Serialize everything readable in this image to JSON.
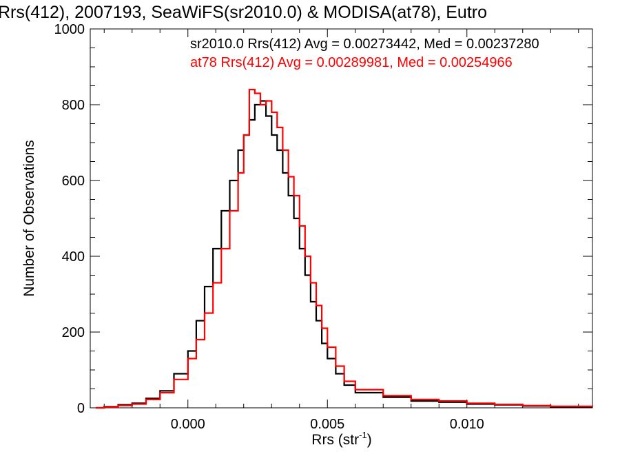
{
  "chart_data": {
    "type": "line",
    "title": "Rrs(412), 2007193, SeaWiFS(sr2010.0) & MODISA(at78), Eutro",
    "xlabel_main": "Rrs (str",
    "xlabel_sup": "-1",
    "xlabel_end": ")",
    "ylabel": "Number of Observations",
    "xlim": [
      -0.0035,
      0.0145
    ],
    "ylim": [
      0,
      1000
    ],
    "x_ticks": [
      0.0,
      0.005,
      0.01
    ],
    "x_tick_labels": [
      "0.000",
      "0.005",
      "0.010"
    ],
    "y_ticks": [
      0,
      200,
      400,
      600,
      800,
      1000
    ],
    "y_tick_labels": [
      "0",
      "200",
      "400",
      "600",
      "800",
      "1000"
    ],
    "series": [
      {
        "color": "#000000",
        "stat_label": "sr2010.0 Rrs(412) Avg = 0.00273442, Med = 0.00237280",
        "points": [
          [
            -0.0033,
            0
          ],
          [
            -0.003,
            3
          ],
          [
            -0.0025,
            8
          ],
          [
            -0.002,
            12
          ],
          [
            -0.0015,
            25
          ],
          [
            -0.001,
            45
          ],
          [
            -0.0005,
            90
          ],
          [
            0.0,
            150
          ],
          [
            0.0003,
            230
          ],
          [
            0.0006,
            320
          ],
          [
            0.0009,
            420
          ],
          [
            0.0012,
            520
          ],
          [
            0.0015,
            600
          ],
          [
            0.0018,
            680
          ],
          [
            0.002,
            720
          ],
          [
            0.0022,
            760
          ],
          [
            0.0024,
            800
          ],
          [
            0.0026,
            810
          ],
          [
            0.0028,
            770
          ],
          [
            0.003,
            720
          ],
          [
            0.0032,
            680
          ],
          [
            0.0034,
            620
          ],
          [
            0.0036,
            560
          ],
          [
            0.0038,
            500
          ],
          [
            0.004,
            420
          ],
          [
            0.0042,
            350
          ],
          [
            0.0044,
            280
          ],
          [
            0.0046,
            230
          ],
          [
            0.0048,
            170
          ],
          [
            0.005,
            130
          ],
          [
            0.0053,
            90
          ],
          [
            0.0056,
            60
          ],
          [
            0.006,
            40
          ],
          [
            0.007,
            28
          ],
          [
            0.008,
            18
          ],
          [
            0.009,
            15
          ],
          [
            0.01,
            10
          ],
          [
            0.011,
            8
          ],
          [
            0.012,
            5
          ],
          [
            0.013,
            3
          ],
          [
            0.0145,
            3
          ]
        ]
      },
      {
        "color": "#ff0000",
        "stat_label": "at78 Rrs(412) Avg = 0.00289981, Med = 0.00254966",
        "points": [
          [
            -0.0033,
            0
          ],
          [
            -0.003,
            2
          ],
          [
            -0.0025,
            6
          ],
          [
            -0.002,
            10
          ],
          [
            -0.0015,
            22
          ],
          [
            -0.001,
            40
          ],
          [
            -0.0005,
            75
          ],
          [
            0.0,
            130
          ],
          [
            0.0003,
            180
          ],
          [
            0.0006,
            250
          ],
          [
            0.0009,
            330
          ],
          [
            0.0012,
            420
          ],
          [
            0.0015,
            520
          ],
          [
            0.0018,
            620
          ],
          [
            0.002,
            720
          ],
          [
            0.0022,
            840
          ],
          [
            0.0024,
            830
          ],
          [
            0.0026,
            800
          ],
          [
            0.0028,
            810
          ],
          [
            0.003,
            780
          ],
          [
            0.0032,
            740
          ],
          [
            0.0034,
            680
          ],
          [
            0.0036,
            610
          ],
          [
            0.0038,
            560
          ],
          [
            0.004,
            480
          ],
          [
            0.0042,
            400
          ],
          [
            0.0044,
            330
          ],
          [
            0.0046,
            270
          ],
          [
            0.0048,
            210
          ],
          [
            0.005,
            160
          ],
          [
            0.0053,
            110
          ],
          [
            0.0056,
            70
          ],
          [
            0.006,
            48
          ],
          [
            0.007,
            32
          ],
          [
            0.008,
            22
          ],
          [
            0.009,
            18
          ],
          [
            0.01,
            12
          ],
          [
            0.011,
            9
          ],
          [
            0.012,
            6
          ],
          [
            0.013,
            4
          ],
          [
            0.0145,
            3
          ]
        ]
      }
    ]
  }
}
